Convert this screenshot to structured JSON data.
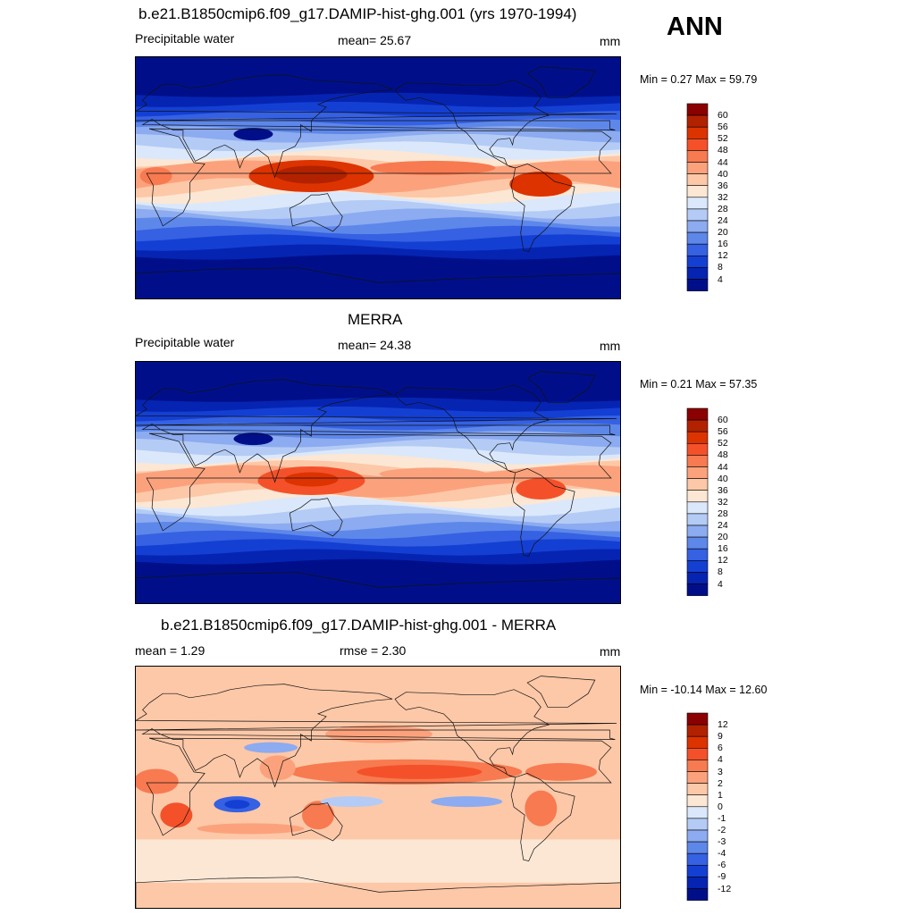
{
  "season": "ANN",
  "panels": [
    {
      "id": "model",
      "title": "b.e21.B1850cmip6.f09_g17.DAMIP-hist-ghg.001 (yrs 1970-1994)",
      "left_label": "Precipitable water",
      "center_label": "mean=  25.67",
      "units": "mm",
      "minmax": "Min =   0.27 Max =  59.79",
      "kind": "absolute",
      "colorbar": {
        "labels": [
          "60",
          "56",
          "52",
          "48",
          "44",
          "40",
          "36",
          "32",
          "28",
          "24",
          "20",
          "16",
          "12",
          "8",
          "4"
        ],
        "colors": [
          "#8b0000",
          "#b22200",
          "#dd3300",
          "#f4512a",
          "#f87a50",
          "#fba27c",
          "#fdc8a8",
          "#fbe7d4",
          "#dbe8fb",
          "#b4cbf5",
          "#8cabf0",
          "#5e87ea",
          "#3561e2",
          "#143fd3",
          "#0624b2",
          "#000f89"
        ]
      }
    },
    {
      "id": "obs",
      "title": "MERRA",
      "left_label": "Precipitable water",
      "center_label": "mean=  24.38",
      "units": "mm",
      "minmax": "Min =   0.21 Max =  57.35",
      "kind": "absolute",
      "colorbar": {
        "labels": [
          "60",
          "56",
          "52",
          "48",
          "44",
          "40",
          "36",
          "32",
          "28",
          "24",
          "20",
          "16",
          "12",
          "8",
          "4"
        ],
        "colors": [
          "#8b0000",
          "#b22200",
          "#dd3300",
          "#f4512a",
          "#f87a50",
          "#fba27c",
          "#fdc8a8",
          "#fbe7d4",
          "#dbe8fb",
          "#b4cbf5",
          "#8cabf0",
          "#5e87ea",
          "#3561e2",
          "#143fd3",
          "#0624b2",
          "#000f89"
        ]
      }
    },
    {
      "id": "diff",
      "title": "b.e21.B1850cmip6.f09_g17.DAMIP-hist-ghg.001 - MERRA",
      "left_label": "mean =   1.29",
      "center_label": "rmse =   2.30",
      "units": "mm",
      "minmax": "Min = -10.14 Max =  12.60",
      "kind": "difference",
      "colorbar": {
        "labels": [
          "12",
          "9",
          "6",
          "4",
          "3",
          "2",
          "1",
          "0",
          "-1",
          "-2",
          "-3",
          "-4",
          "-6",
          "-9",
          "-12"
        ],
        "colors": [
          "#8b0000",
          "#b22200",
          "#dd3300",
          "#f4512a",
          "#f87a50",
          "#fba27c",
          "#fdc8a8",
          "#fbe7d4",
          "#dbe8fb",
          "#b4cbf5",
          "#8cabf0",
          "#5e87ea",
          "#3561e2",
          "#143fd3",
          "#0624b2",
          "#000f89"
        ]
      }
    }
  ],
  "chart_data": {
    "type": "heatmap",
    "variable": "Precipitable water",
    "units": "mm",
    "maps": [
      {
        "title": "b.e21.B1850cmip6.f09_g17.DAMIP-hist-ghg.001 (yrs 1970-1994)",
        "mean": 25.67,
        "min": 0.27,
        "max": 59.79,
        "levels": [
          4,
          8,
          12,
          16,
          20,
          24,
          28,
          32,
          36,
          40,
          44,
          48,
          52,
          56,
          60
        ]
      },
      {
        "title": "MERRA",
        "mean": 24.38,
        "min": 0.21,
        "max": 57.35,
        "levels": [
          4,
          8,
          12,
          16,
          20,
          24,
          28,
          32,
          36,
          40,
          44,
          48,
          52,
          56,
          60
        ]
      },
      {
        "title": "b.e21.B1850cmip6.f09_g17.DAMIP-hist-ghg.001 - MERRA",
        "mean": 1.29,
        "rmse": 2.3,
        "min": -10.14,
        "max": 12.6,
        "levels": [
          -12,
          -9,
          -6,
          -4,
          -3,
          -2,
          -1,
          0,
          1,
          2,
          3,
          4,
          6,
          9,
          12
        ]
      }
    ]
  }
}
